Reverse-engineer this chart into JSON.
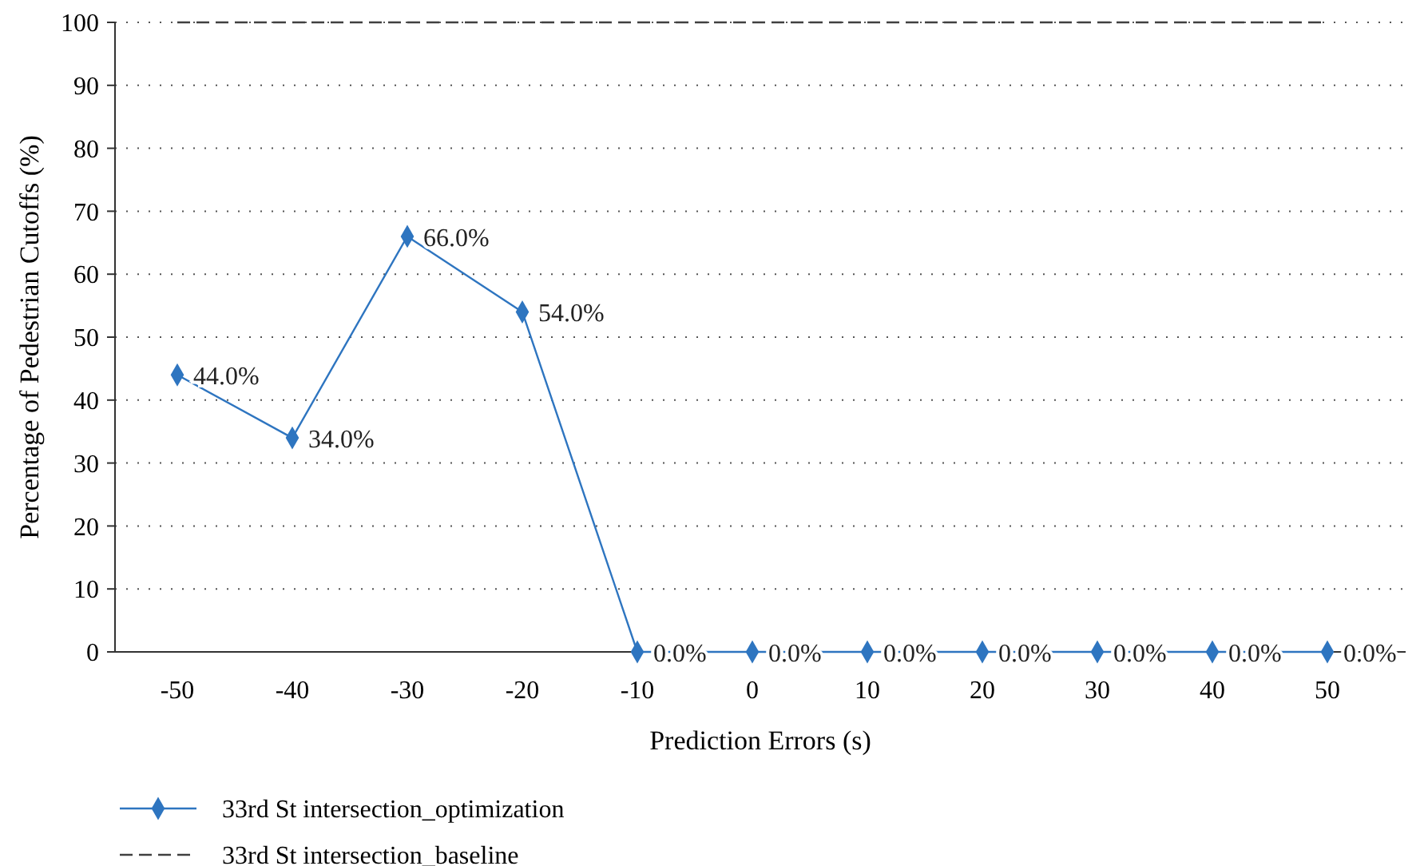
{
  "chart_data": {
    "type": "line",
    "xlabel": "Prediction Errors (s)",
    "ylabel": "Percentage of Pedestrian Cutoffs (%)",
    "categories": [
      "-50",
      "-40",
      "-30",
      "-20",
      "-10",
      "0",
      "10",
      "20",
      "30",
      "40",
      "50"
    ],
    "series": [
      {
        "name": "33rd St intersection_optimization",
        "color": "#2e75c0",
        "marker": "diamond",
        "line_style": "solid",
        "values": [
          44,
          34,
          66,
          54,
          0,
          0,
          0,
          0,
          0,
          0,
          0
        ],
        "value_labels": [
          "44.0%",
          "34.0%",
          "66.0%",
          "54.0%",
          "0.0%",
          "0.0%",
          "0.0%",
          "0.0%",
          "0.0%",
          "0.0%",
          "0.0%"
        ]
      },
      {
        "name": "33rd St intersection_baseline",
        "color": "#404040",
        "marker": "none",
        "line_style": "dashed",
        "values": [
          100,
          100,
          100,
          100,
          100,
          100,
          100,
          100,
          100,
          100,
          100
        ]
      }
    ],
    "ylim": [
      0,
      100
    ],
    "yticks": [
      0,
      10,
      20,
      30,
      40,
      50,
      60,
      70,
      80,
      90,
      100
    ],
    "grid": "y",
    "legend": "bottom left"
  }
}
